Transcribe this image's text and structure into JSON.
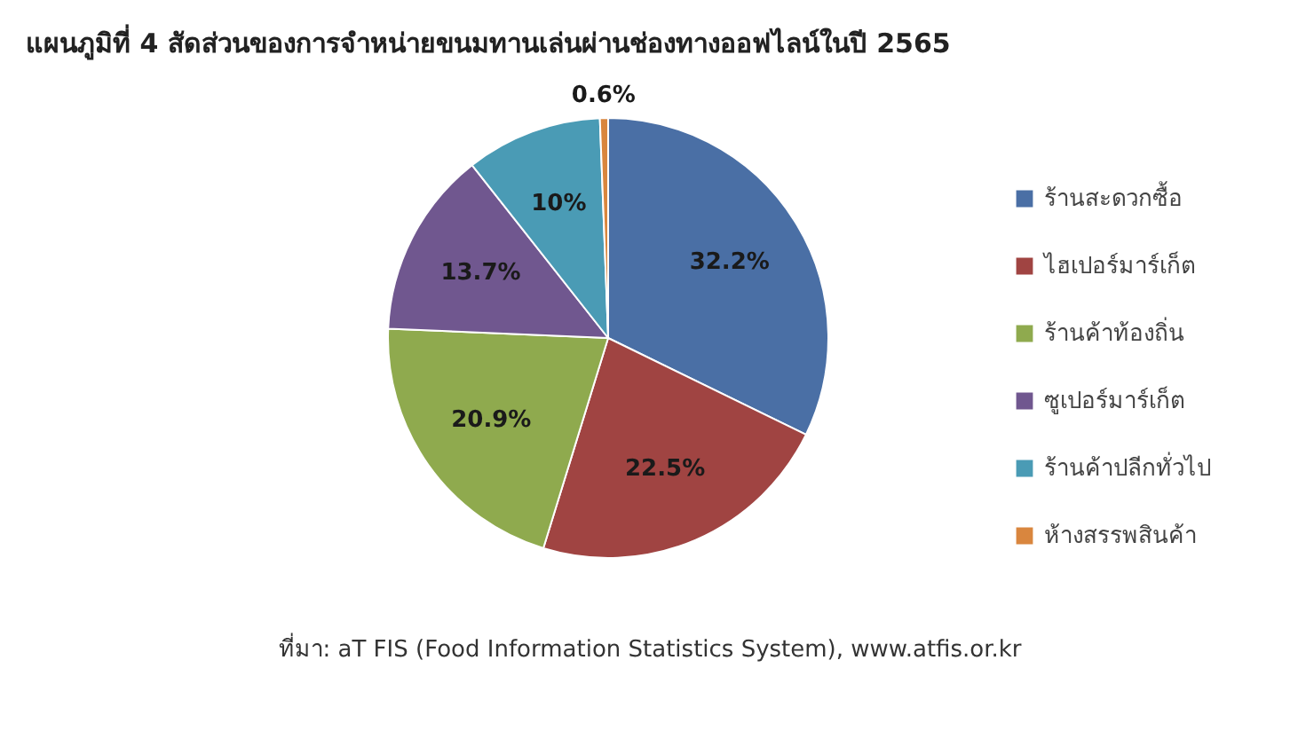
{
  "chart_data": {
    "type": "pie",
    "title": "แผนภูมิที่ 4 สัดส่วนของการจำหน่ายขนมทานเล่นผ่านช่องทางออฟไลน์ในปี 2565",
    "categories": [
      "ร้านสะดวกซื้อ",
      "ไฮเปอร์มาร์เก็ต",
      "ร้านค้าท้องถิ่น",
      "ซูเปอร์มาร์เก็ต",
      "ร้านค้าปลีกทั่วไป",
      "ห้างสรรพสินค้า"
    ],
    "values": [
      32.2,
      22.5,
      20.9,
      13.7,
      10,
      0.6
    ],
    "colors": [
      "#4a6fa5",
      "#a04442",
      "#8faa4e",
      "#70578f",
      "#4a9bb5",
      "#d9863e"
    ],
    "value_labels": [
      "32.2%",
      "22.5%",
      "20.9%",
      "13.7%",
      "10%",
      "0.6%"
    ],
    "legend": "right",
    "annotations": [
      "ที่มา: aT FIS (Food Information Statistics System), www.atfis.or.kr"
    ]
  }
}
